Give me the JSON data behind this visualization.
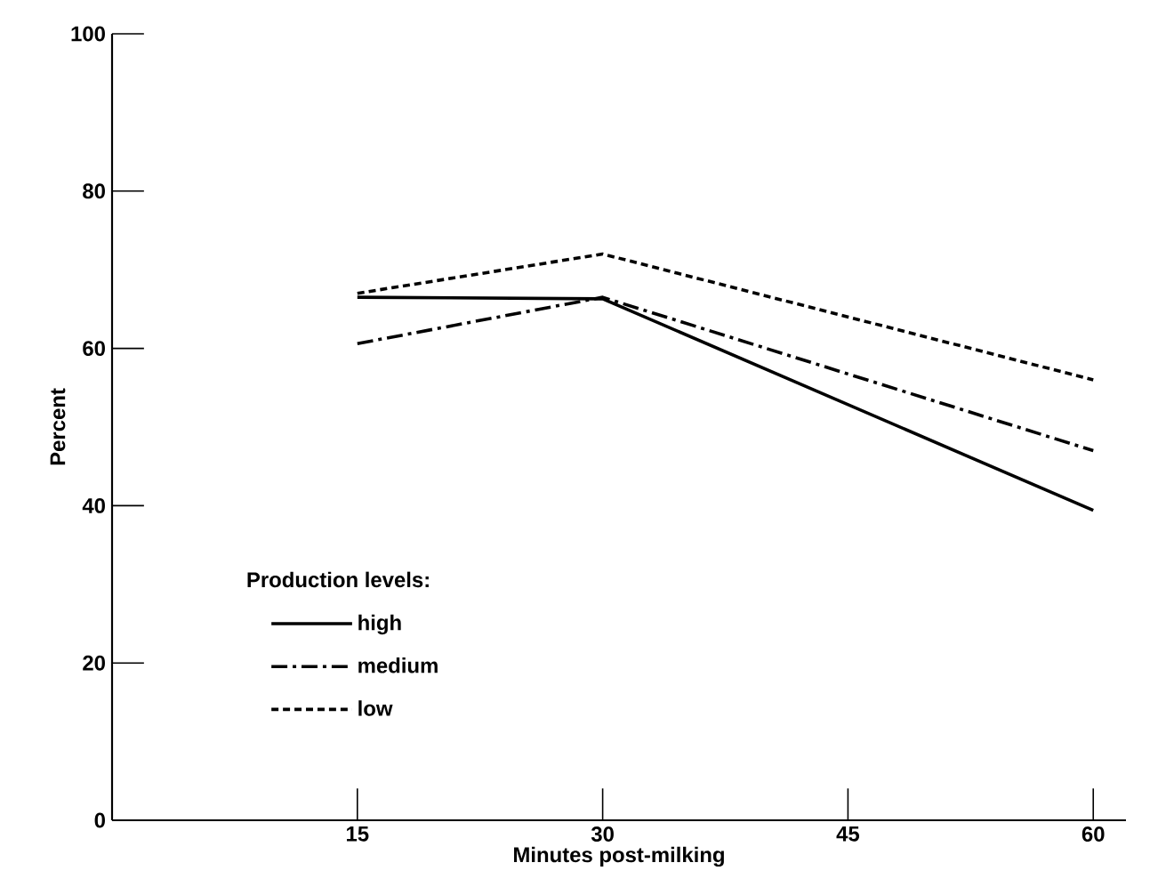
{
  "chart_data": {
    "type": "line",
    "xlabel": "Minutes post-milking",
    "ylabel": "Percent",
    "legend_title": "Production levels:",
    "x": [
      15,
      30,
      60
    ],
    "xlim": [
      0,
      62
    ],
    "ylim": [
      0,
      100
    ],
    "xticks": [
      15,
      30,
      45,
      60
    ],
    "yticks": [
      0,
      20,
      40,
      60,
      80,
      100
    ],
    "legend": "left",
    "grid": false,
    "series": [
      {
        "name": "high",
        "color": "#000000",
        "line_style": "solid",
        "values": [
          66.5,
          66.3,
          39.4
        ]
      },
      {
        "name": "medium",
        "color": "#000000",
        "line_style": "dashdot",
        "values": [
          60.6,
          66.5,
          47
        ]
      },
      {
        "name": "low",
        "color": "#000000",
        "line_style": "dashed",
        "values": [
          67,
          72,
          56
        ]
      }
    ]
  }
}
